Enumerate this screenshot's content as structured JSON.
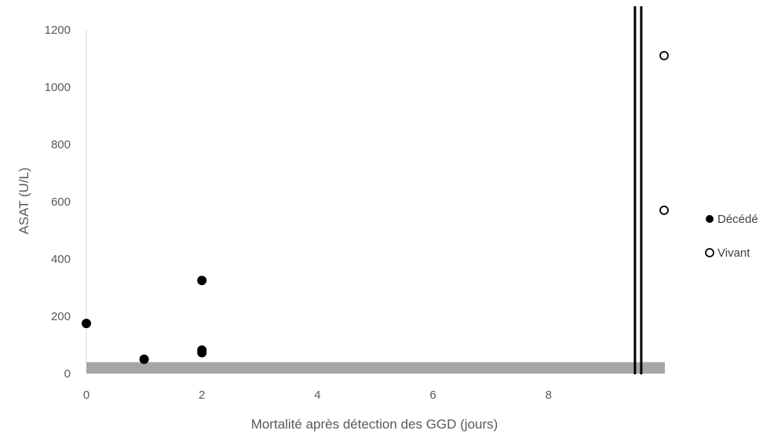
{
  "chart_data": {
    "type": "scatter",
    "xlabel": "Mortalité après détection des GGD (jours)",
    "ylabel": "ASAT (U/L)",
    "xlim": [
      0,
      10
    ],
    "ylim": [
      0,
      1200
    ],
    "x_ticks": [
      "0",
      "2",
      "4",
      "6",
      "8"
    ],
    "y_ticks": [
      "0",
      "200",
      "400",
      "600",
      "800",
      "1000",
      "1200"
    ],
    "grid": false,
    "legend_position": "right",
    "reference_band": {
      "y_from": 0,
      "y_to": 40,
      "color": "#a6a6a6"
    },
    "axis_break_x": 9.55,
    "series": [
      {
        "name": "Décédé",
        "marker": "filled",
        "color": "#000000",
        "points": [
          {
            "x": 0,
            "y": 175
          },
          {
            "x": 1,
            "y": 50
          },
          {
            "x": 2,
            "y": 325
          },
          {
            "x": 2,
            "y": 82
          },
          {
            "x": 2,
            "y": 73
          }
        ]
      },
      {
        "name": "Vivant",
        "marker": "open",
        "color": "#000000",
        "points": [
          {
            "x": 10,
            "y": 1110
          },
          {
            "x": 10,
            "y": 570
          }
        ]
      }
    ]
  }
}
